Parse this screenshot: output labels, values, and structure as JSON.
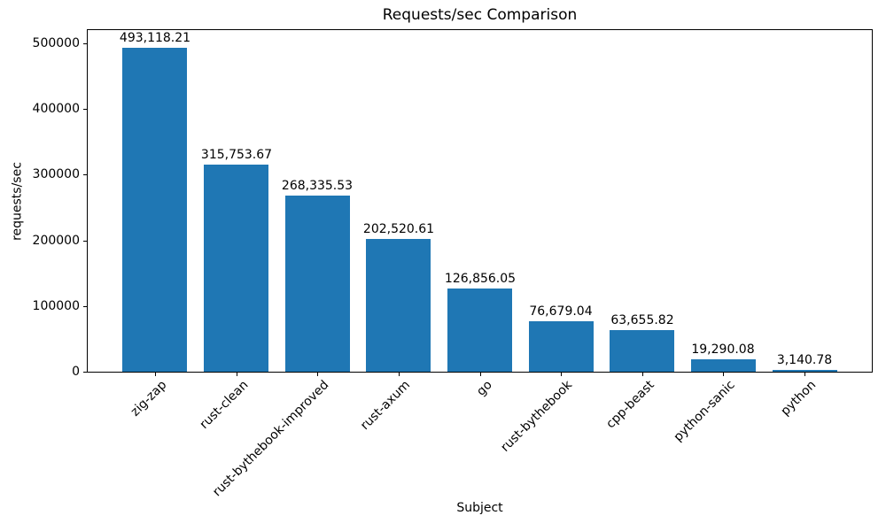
{
  "chart_data": {
    "type": "bar",
    "title": "Requests/sec Comparison",
    "xlabel": "Subject",
    "ylabel": "requests/sec",
    "categories": [
      "zig-zap",
      "rust-clean",
      "rust-bythebook-improved",
      "rust-axum",
      "go",
      "rust-bythebook",
      "cpp-beast",
      "python-sanic",
      "python"
    ],
    "values": [
      493118.21,
      315753.67,
      268335.53,
      202520.61,
      126856.05,
      76679.04,
      63655.82,
      19290.08,
      3140.78
    ],
    "bar_labels": [
      "493,118.21",
      "315,753.67",
      "268,335.53",
      "202,520.61",
      "126,856.05",
      "76,679.04",
      "63,655.82",
      "19,290.08",
      "3,140.78"
    ],
    "bar_color": "#1f77b4",
    "text_color": "#000000",
    "ylim": [
      0,
      520000
    ],
    "yticks": [
      0,
      100000,
      200000,
      300000,
      400000,
      500000
    ],
    "ytick_labels": [
      "0",
      "100000",
      "200000",
      "300000",
      "400000",
      "500000"
    ],
    "x_tick_rotation": 45,
    "grid": false,
    "legend": null
  }
}
